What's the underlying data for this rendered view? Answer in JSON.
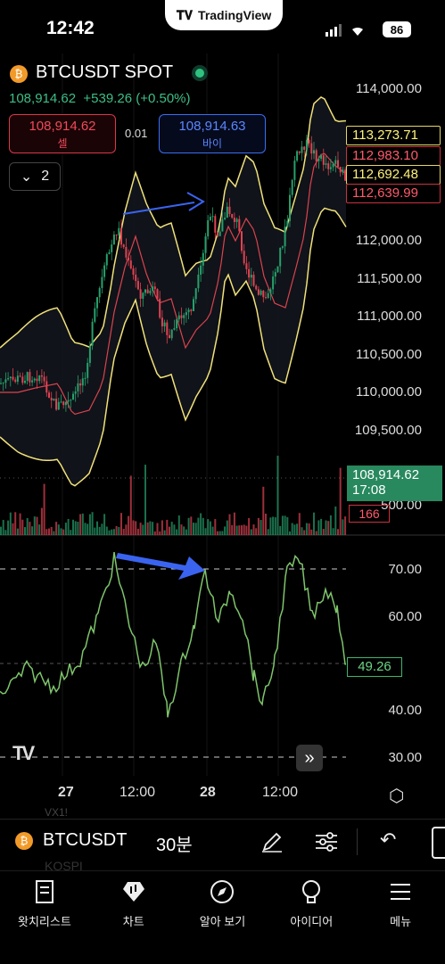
{
  "status": {
    "time": "12:42",
    "app_pill": "TradingView",
    "battery": "86"
  },
  "header": {
    "symbol": "BTCUSDT SPOT",
    "price": "108,914.62",
    "change": "+539.26 (+0.50%)",
    "sell_price": "108,914.62",
    "sell_label": "셀",
    "spread": "0.01",
    "buy_price": "108,914.63",
    "buy_label": "바이",
    "indicator_count": "2"
  },
  "price_axis": [
    "114,000.00",
    "112,000.00",
    "111,500.00",
    "111,000.00",
    "110,500.00",
    "110,000.00",
    "109,500.00",
    "500.00"
  ],
  "price_tags": {
    "bb_upper": "113,273.71",
    "high": "112,983.10",
    "bb_mid": "112,692.48",
    "low": "112,639.99",
    "last": "108,914.62",
    "countdown": "17:08",
    "volume": "166"
  },
  "rsi_axis": [
    "70.00",
    "60.00",
    "40.00",
    "30.00"
  ],
  "rsi_value": "49.26",
  "time_axis": [
    "27",
    "12:00",
    "28",
    "12:00"
  ],
  "toolbar": {
    "symbol": "BTCUSDT",
    "interval": "30분"
  },
  "ghost": {
    "a": "VX1!",
    "b": "KOSPI"
  },
  "nav": [
    {
      "label": "왓치리스트",
      "icon": "watchlist-icon"
    },
    {
      "label": "차트",
      "icon": "chart-icon"
    },
    {
      "label": "알아 보기",
      "icon": "compass-icon"
    },
    {
      "label": "아이디어",
      "icon": "idea-bulb-icon"
    },
    {
      "label": "메뉴",
      "icon": "menu-icon"
    }
  ],
  "colors": {
    "up": "#27a06c",
    "down": "#e04352",
    "bb": "#f0e17a",
    "ma": "#d9434f",
    "rsi": "#7ec46b",
    "arrow": "#3a64f0"
  }
}
